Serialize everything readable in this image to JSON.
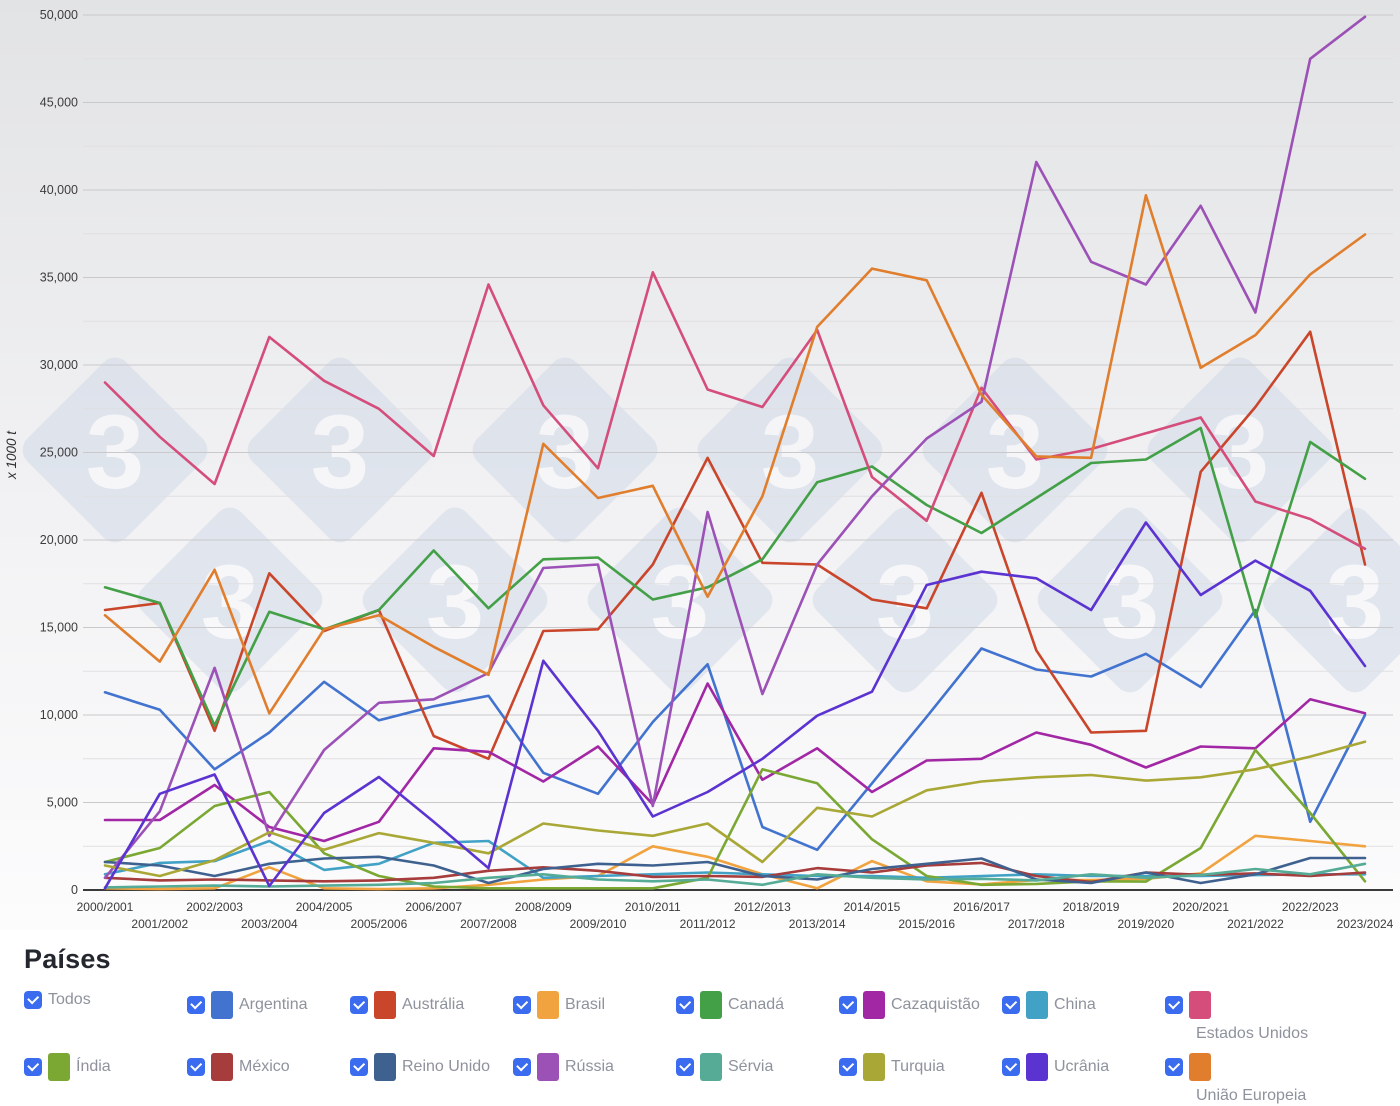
{
  "legend": {
    "title": "Países",
    "select_all_label": "Todos",
    "select_all_checked": true
  },
  "chart_data": {
    "type": "line",
    "title": "",
    "xlabel": "",
    "ylabel": "x 1000 t",
    "ylim": [
      0,
      50000
    ],
    "y_tick_step": 5000,
    "y_minor_step": 2500,
    "grid": true,
    "legend_position": "bottom",
    "x_label_layout": "staggered-two-rows",
    "categories": [
      "2000/2001",
      "2001/2002",
      "2002/2003",
      "2003/2004",
      "2004/2005",
      "2005/2006",
      "2006/2007",
      "2007/2008",
      "2008/2009",
      "2009/2010",
      "2010/2011",
      "2011/2012",
      "2012/2013",
      "2013/2014",
      "2014/2015",
      "2015/2016",
      "2016/2017",
      "2017/2018",
      "2018/2019",
      "2019/2020",
      "2020/2021",
      "2021/2022",
      "2022/2023",
      "2023/2024"
    ],
    "series": [
      {
        "id": "argentina",
        "name": "Argentina",
        "color": "#4273cf",
        "checked": true,
        "values": [
          11300,
          10300,
          6900,
          9000,
          11900,
          9700,
          10500,
          11100,
          6700,
          5500,
          9600,
          12900,
          3600,
          2300,
          6100,
          9900,
          13800,
          12600,
          12200,
          13500,
          11600,
          16000,
          3900,
          10000
        ]
      },
      {
        "id": "australia",
        "name": "Austrália",
        "color": "#c9462b",
        "checked": true,
        "values": [
          16000,
          16400,
          9100,
          18100,
          14800,
          16000,
          8800,
          7500,
          14800,
          14900,
          18600,
          24700,
          18700,
          18600,
          16600,
          16100,
          22700,
          13700,
          9000,
          9100,
          23900,
          27600,
          31900,
          18600
        ]
      },
      {
        "id": "brasil",
        "name": "Brasil",
        "color": "#f0a33f",
        "checked": true,
        "values": [
          100,
          50,
          100,
          1300,
          100,
          50,
          100,
          300,
          600,
          800,
          2500,
          1900,
          900,
          100,
          1650,
          500,
          320,
          570,
          570,
          640,
          950,
          3100,
          2800,
          2500
        ]
      },
      {
        "id": "canada",
        "name": "Canadá",
        "color": "#43a047",
        "checked": true,
        "values": [
          17300,
          16400,
          9400,
          15900,
          14900,
          16000,
          19400,
          16100,
          18900,
          19000,
          16600,
          17300,
          18900,
          23300,
          24200,
          22000,
          20400,
          22400,
          24400,
          24600,
          26400,
          15600,
          25600,
          23500
        ]
      },
      {
        "id": "cazaquistao",
        "name": "Cazaquistão",
        "color": "#a227a5",
        "checked": true,
        "values": [
          4000,
          4000,
          6000,
          3600,
          2800,
          3900,
          8100,
          7900,
          6200,
          8200,
          4900,
          11800,
          6300,
          8100,
          5600,
          7400,
          7500,
          9000,
          8300,
          7000,
          8200,
          8100,
          10900,
          10100
        ]
      },
      {
        "id": "china",
        "name": "China",
        "color": "#42a2c6",
        "checked": true,
        "values": [
          900,
          1550,
          1650,
          2800,
          1150,
          1500,
          2700,
          2800,
          700,
          800,
          900,
          1000,
          900,
          800,
          800,
          700,
          800,
          900,
          800,
          800,
          800,
          850,
          900,
          900
        ]
      },
      {
        "id": "estados-unidos",
        "name": "Estados Unidos",
        "color": "#d44d7b",
        "checked": true,
        "values": [
          29000,
          25900,
          23200,
          31600,
          29100,
          27500,
          24800,
          34600,
          27700,
          24100,
          35300,
          28600,
          27600,
          32000,
          23600,
          21100,
          28700,
          24600,
          25200,
          26100,
          27000,
          22200,
          21200,
          19500
        ]
      },
      {
        "id": "india",
        "name": "Índia",
        "color": "#7aa832",
        "checked": true,
        "values": [
          1600,
          2400,
          4800,
          5600,
          2100,
          800,
          200,
          100,
          100,
          100,
          100,
          700,
          6900,
          6100,
          2900,
          800,
          300,
          350,
          500,
          480,
          2400,
          8000,
          4400,
          500
        ]
      },
      {
        "id": "mexico",
        "name": "México",
        "color": "#a63c3c",
        "checked": true,
        "values": [
          700,
          550,
          600,
          550,
          500,
          550,
          700,
          1100,
          1300,
          1100,
          750,
          800,
          750,
          1250,
          1000,
          1400,
          1550,
          800,
          450,
          1000,
          870,
          950,
          800,
          1000
        ]
      },
      {
        "id": "reino-unido",
        "name": "Reino Unido",
        "color": "#3f618f",
        "checked": true,
        "values": [
          1600,
          1400,
          800,
          1500,
          1800,
          1900,
          1400,
          400,
          1200,
          1500,
          1400,
          1600,
          800,
          600,
          1200,
          1500,
          1800,
          600,
          400,
          1000,
          400,
          900,
          1830,
          1830
        ]
      },
      {
        "id": "russia",
        "name": "Rússia",
        "color": "#9c51b6",
        "checked": true,
        "values": [
          700,
          4500,
          12700,
          3100,
          8000,
          10700,
          10900,
          12400,
          18400,
          18600,
          4800,
          21600,
          11200,
          18600,
          22500,
          25800,
          27900,
          41600,
          35900,
          34600,
          39100,
          33000,
          47500,
          49900
        ]
      },
      {
        "id": "servia",
        "name": "Sérvia",
        "color": "#55ab96",
        "checked": true,
        "values": [
          150,
          200,
          250,
          200,
          250,
          300,
          400,
          700,
          900,
          600,
          500,
          600,
          300,
          900,
          700,
          600,
          640,
          550,
          900,
          700,
          850,
          1200,
          900,
          1500
        ]
      },
      {
        "id": "turquia",
        "name": "Turquia",
        "color": "#a9a837",
        "checked": true,
        "values": [
          1400,
          800,
          1700,
          3300,
          2300,
          3250,
          2700,
          2100,
          3800,
          3400,
          3100,
          3800,
          1600,
          4700,
          4200,
          5700,
          6200,
          6440,
          6570,
          6250,
          6440,
          6900,
          7620,
          8475
        ]
      },
      {
        "id": "ucrania",
        "name": "Ucrânia",
        "color": "#5b33d1",
        "checked": true,
        "values": [
          100,
          5500,
          6600,
          230,
          4400,
          6460,
          3900,
          1250,
          13100,
          9100,
          4200,
          5600,
          7500,
          9960,
          11330,
          17430,
          18190,
          17810,
          16000,
          21000,
          16860,
          18820,
          17100,
          12800
        ]
      },
      {
        "id": "uniao-europeia",
        "name": "União Europeia",
        "color": "#e07e2d",
        "checked": true,
        "values": [
          15700,
          13050,
          18300,
          10100,
          14900,
          15700,
          13900,
          12300,
          25500,
          22400,
          23100,
          16760,
          22500,
          32180,
          35510,
          34840,
          28300,
          24780,
          24700,
          39700,
          29840,
          31710,
          35180,
          37460
        ]
      }
    ]
  }
}
